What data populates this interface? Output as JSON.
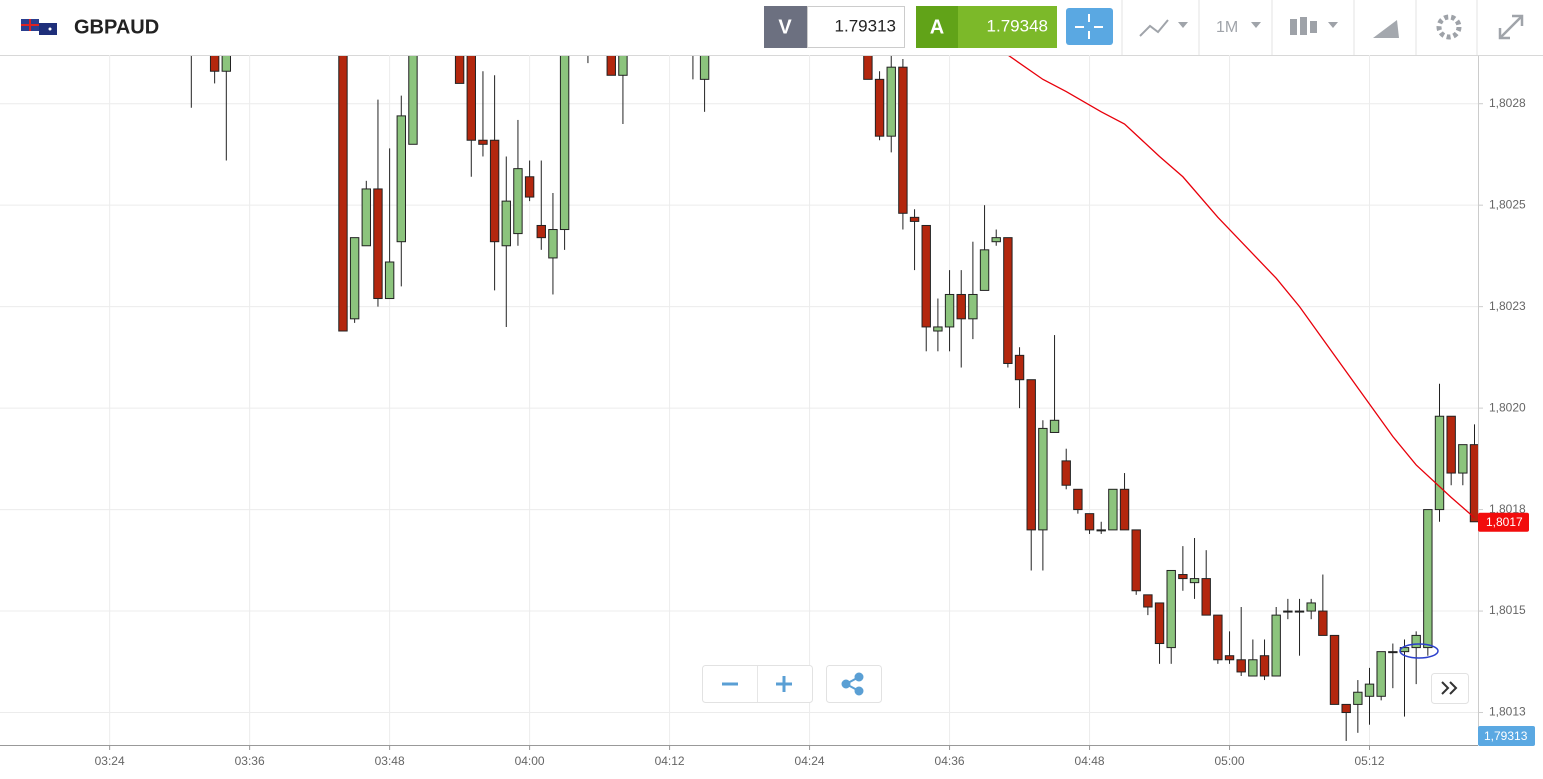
{
  "toolbar": {
    "symbol": "GBPAUD",
    "sell": {
      "label": "V",
      "price": "1.79313"
    },
    "buy": {
      "label": "A",
      "price": "1.79348"
    },
    "timeframe": "1M"
  },
  "chart_data": {
    "type": "candlestick",
    "x": [
      211,
      213,
      214,
      224,
      225,
      226,
      227,
      228,
      229,
      230,
      234,
      235,
      236,
      237,
      238,
      239,
      240,
      241,
      242,
      243,
      245,
      247,
      248,
      254,
      255,
      269,
      270,
      271,
      272,
      273,
      274,
      275,
      276,
      277,
      278,
      279,
      280,
      281,
      282,
      283,
      284,
      285,
      286,
      287,
      288,
      289,
      290,
      291,
      292,
      293,
      294,
      295,
      296,
      297,
      298,
      299,
      300,
      301,
      302,
      303,
      304,
      305,
      306,
      307,
      308,
      309,
      310,
      311,
      312,
      313,
      314,
      315,
      316,
      317,
      318,
      319,
      320,
      321
    ],
    "open": [
      1.803,
      1.80295,
      1.80283,
      1.803,
      1.80222,
      1.8024,
      1.80254,
      1.80227,
      1.80241,
      1.80265,
      1.80295,
      1.8029,
      1.80266,
      1.80266,
      1.8024,
      1.80243,
      1.80257,
      1.80245,
      1.80237,
      1.80244,
      1.80295,
      1.80295,
      1.80282,
      1.80295,
      1.80281,
      1.80295,
      1.80281,
      1.80267,
      1.80284,
      1.80247,
      1.80245,
      1.80219,
      1.8022,
      1.80228,
      1.80222,
      1.80229,
      1.80241,
      1.80242,
      1.80213,
      1.80207,
      1.8017,
      1.80194,
      1.80187,
      1.8018,
      1.80174,
      1.8017,
      1.8017,
      1.8018,
      1.8017,
      1.80154,
      1.80152,
      1.80141,
      1.80159,
      1.80157,
      1.80158,
      1.80149,
      1.80139,
      1.80138,
      1.80134,
      1.80139,
      1.80134,
      1.8015,
      1.8015,
      1.8015,
      1.8015,
      1.80144,
      1.80127,
      1.80127,
      1.80129,
      1.80129,
      1.8014,
      1.8014,
      1.80141,
      1.80141,
      1.80175,
      1.80198,
      1.80184,
      1.80191
    ],
    "high": [
      1.8031,
      1.803,
      1.803,
      1.80305,
      1.80242,
      1.80256,
      1.80276,
      1.80264,
      1.80277,
      1.803,
      1.803,
      1.803,
      1.80283,
      1.80282,
      1.80262,
      1.80271,
      1.80261,
      1.80261,
      1.80253,
      1.803,
      1.80305,
      1.803,
      1.803,
      1.80305,
      1.803,
      1.803,
      1.80283,
      1.80295,
      1.80286,
      1.80249,
      1.80245,
      1.80227,
      1.80234,
      1.80234,
      1.80241,
      1.8025,
      1.80244,
      1.80242,
      1.80215,
      1.80207,
      1.80197,
      1.80218,
      1.8019,
      1.8018,
      1.80174,
      1.80172,
      1.8018,
      1.80184,
      1.8017,
      1.80154,
      1.80152,
      1.8016,
      1.80166,
      1.80168,
      1.80165,
      1.80149,
      1.80145,
      1.80151,
      1.80143,
      1.80143,
      1.80151,
      1.80153,
      1.80153,
      1.80153,
      1.80159,
      1.80144,
      1.80127,
      1.80133,
      1.80136,
      1.8014,
      1.80142,
      1.80143,
      1.80145,
      1.80175,
      1.80206,
      1.80198,
      1.80191,
      1.80196
    ],
    "low": [
      1.80274,
      1.8028,
      1.80261,
      1.80219,
      1.80221,
      1.8024,
      1.80225,
      1.80227,
      1.8023,
      1.80265,
      1.8028,
      1.80257,
      1.80262,
      1.80229,
      1.8022,
      1.8024,
      1.80251,
      1.80239,
      1.80228,
      1.80239,
      1.80285,
      1.80282,
      1.8027,
      1.80281,
      1.80273,
      1.80281,
      1.80266,
      1.80263,
      1.80244,
      1.80234,
      1.80214,
      1.80214,
      1.80214,
      1.8021,
      1.80217,
      1.80229,
      1.8024,
      1.8021,
      1.802,
      1.8016,
      1.8016,
      1.80194,
      1.8018,
      1.80174,
      1.80169,
      1.80169,
      1.8017,
      1.8017,
      1.80154,
      1.80149,
      1.80137,
      1.80137,
      1.80155,
      1.80153,
      1.80149,
      1.80137,
      1.80137,
      1.80134,
      1.80134,
      1.80133,
      1.80134,
      1.80148,
      1.80139,
      1.80148,
      1.80144,
      1.80127,
      1.80118,
      1.8012,
      1.80122,
      1.80128,
      1.80131,
      1.80124,
      1.80132,
      1.80139,
      1.80172,
      1.80181,
      1.80181,
      1.80172
    ],
    "close": [
      1.80296,
      1.80283,
      1.80295,
      1.80219,
      1.80242,
      1.80254,
      1.80227,
      1.80236,
      1.80272,
      1.80295,
      1.8028,
      1.80266,
      1.80265,
      1.80241,
      1.80251,
      1.80259,
      1.80252,
      1.80242,
      1.80244,
      1.80295,
      1.80297,
      1.80282,
      1.80295,
      1.80292,
      1.80295,
      1.80281,
      1.80267,
      1.80284,
      1.80248,
      1.80246,
      1.8022,
      1.8022,
      1.80228,
      1.80222,
      1.80228,
      1.80239,
      1.80242,
      1.80211,
      1.80207,
      1.8017,
      1.80195,
      1.80197,
      1.80181,
      1.80175,
      1.8017,
      1.8017,
      1.8018,
      1.8017,
      1.80155,
      1.80151,
      1.80142,
      1.8016,
      1.80158,
      1.80158,
      1.80149,
      1.80138,
      1.80138,
      1.80135,
      1.80138,
      1.80134,
      1.80149,
      1.8015,
      1.8015,
      1.80152,
      1.80144,
      1.80127,
      1.80125,
      1.8013,
      1.80132,
      1.8014,
      1.8014,
      1.80141,
      1.80144,
      1.80175,
      1.80198,
      1.80184,
      1.80191,
      1.80172
    ],
    "up_color": "#8cc47d",
    "down_color": "#b3270e",
    "moving_average": {
      "color": "#e8000b",
      "x": [
        281,
        284,
        286,
        289,
        291,
        294,
        296,
        299,
        301,
        304,
        306,
        309,
        311,
        314,
        316,
        319,
        321
      ],
      "values": [
        1.80287,
        1.80281,
        1.80278,
        1.80273,
        1.8027,
        1.80262,
        1.80257,
        1.80247,
        1.80241,
        1.80232,
        1.80225,
        1.80213,
        1.80205,
        1.80193,
        1.80186,
        1.80178,
        1.80173
      ]
    },
    "current_price": {
      "value": 1.80172,
      "label": "1,8017",
      "color": "#f20c0c"
    },
    "bid_label": "1,79313",
    "xlim": [
      194.6,
      321.3
    ],
    "xticks": [
      {
        "value": 204,
        "label": "03:24"
      },
      {
        "value": 216,
        "label": "03:36"
      },
      {
        "value": 228,
        "label": "03:48"
      },
      {
        "value": 240,
        "label": "04:00"
      },
      {
        "value": 252,
        "label": "04:12"
      },
      {
        "value": 264,
        "label": "04:24"
      },
      {
        "value": 276,
        "label": "04:36"
      },
      {
        "value": 288,
        "label": "04:48"
      },
      {
        "value": 300,
        "label": "05:00"
      },
      {
        "value": 312,
        "label": "05:12"
      }
    ],
    "ylim": [
      1.80117,
      1.80287
    ],
    "yticks": [
      {
        "value": 1.80125,
        "label": "1,8013"
      },
      {
        "value": 1.8015,
        "label": "1,8015"
      },
      {
        "value": 1.80175,
        "label": "1,8018"
      },
      {
        "value": 1.802,
        "label": "1,8020"
      },
      {
        "value": 1.80225,
        "label": "1,8023"
      },
      {
        "value": 1.8025,
        "label": "1,8025"
      },
      {
        "value": 1.80275,
        "label": "1,8028"
      }
    ],
    "grid": true
  }
}
